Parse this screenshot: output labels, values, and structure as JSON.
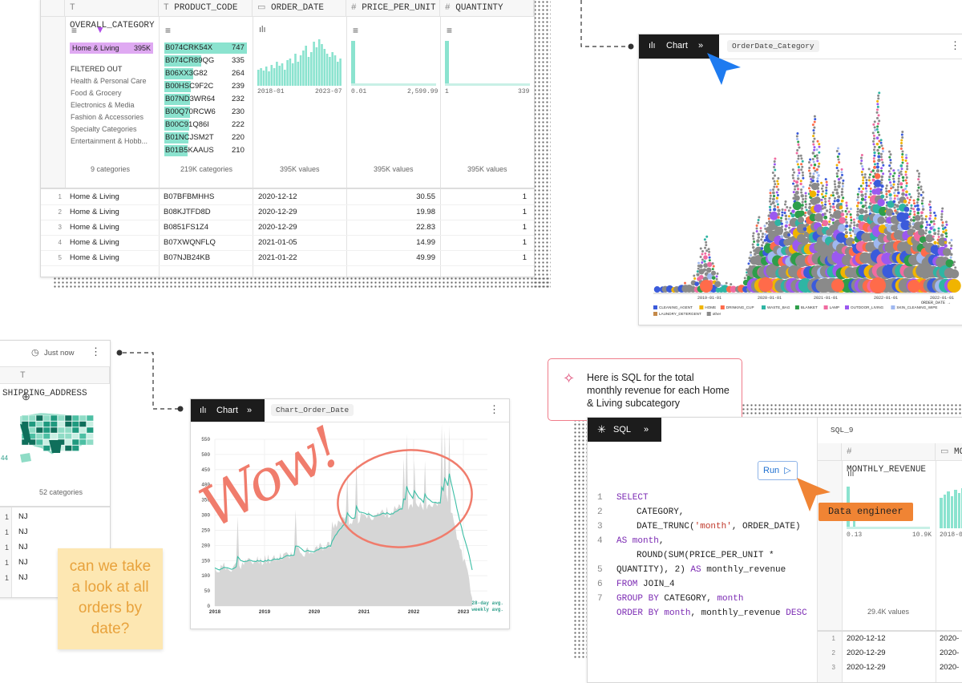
{
  "table": {
    "columns": [
      {
        "icon": "T",
        "name": "OVERALL_CATEGORY"
      },
      {
        "icon": "T",
        "name": "PRODUCT_CODE"
      },
      {
        "icon": "cal",
        "name": "ORDER_DATE"
      },
      {
        "icon": "#",
        "name": "PRICE_PER_UNIT"
      },
      {
        "icon": "#",
        "name": "QUANTINTY"
      }
    ],
    "category_selected": {
      "label": "Home & Living",
      "count": "395K"
    },
    "filtered_out_label": "FILTERED OUT",
    "filtered_out": [
      "Health & Personal Care",
      "Food & Grocery",
      "Electronics & Media",
      "Fashion & Accessories",
      "Specialty Categories",
      "Entertainment & Hobb..."
    ],
    "category_summary": "9 categories",
    "product_codes": [
      {
        "code": "B074CRK54X",
        "count": "747",
        "fill": 1.0
      },
      {
        "code": "B074CR89QG",
        "count": "335",
        "fill": 0.45
      },
      {
        "code": "B06XX3G82",
        "count": "264",
        "fill": 0.35
      },
      {
        "code": "B00HSC9F2C",
        "count": "239",
        "fill": 0.32
      },
      {
        "code": "B07ND3WR64",
        "count": "232",
        "fill": 0.31
      },
      {
        "code": "B00Q70RCW6",
        "count": "230",
        "fill": 0.31
      },
      {
        "code": "B00C91Q86I",
        "count": "222",
        "fill": 0.3
      },
      {
        "code": "B01NCJSM2T",
        "count": "220",
        "fill": 0.29
      },
      {
        "code": "B01B5KAAUS",
        "count": "210",
        "fill": 0.28
      }
    ],
    "product_summary": "219K categories",
    "order_date_range": [
      "2018-01",
      "2023-07"
    ],
    "order_date_summary": "395K values",
    "price_range": [
      "0.01",
      "2,599.99"
    ],
    "price_summary": "395K values",
    "qty_range": [
      "1",
      "339"
    ],
    "qty_summary": "395K values",
    "rows": [
      {
        "n": "1",
        "cat": "Home & Living",
        "code": "B07BFBMHHS",
        "date": "2020-12-12",
        "price": "30.55",
        "qty": "1"
      },
      {
        "n": "2",
        "cat": "Home & Living",
        "code": "B08KJTFD8D",
        "date": "2020-12-29",
        "price": "19.98",
        "qty": "1"
      },
      {
        "n": "3",
        "cat": "Home & Living",
        "code": "B0851FS1Z4",
        "date": "2020-12-29",
        "price": "22.83",
        "qty": "1"
      },
      {
        "n": "4",
        "cat": "Home & Living",
        "code": "B07XWQNFLQ",
        "date": "2021-01-05",
        "price": "14.99",
        "qty": "1"
      },
      {
        "n": "5",
        "cat": "Home & Living",
        "code": "B07NJB24KB",
        "date": "2021-01-22",
        "price": "49.99",
        "qty": "1"
      }
    ]
  },
  "chart1": {
    "tab": "Chart",
    "name": "OrderDate_Category",
    "x_ticks": [
      "2019-01-01",
      "2020-01-01",
      "2021-01-01",
      "2022-01-01",
      "2022-01-01"
    ],
    "x_label": "ORDER_DATE →",
    "legend": [
      {
        "name": "CLEANING_AGENT",
        "color": "#3b5bdb"
      },
      {
        "name": "HOME",
        "color": "#f0b400"
      },
      {
        "name": "DRINKING_CUP",
        "color": "#ff6b4a"
      },
      {
        "name": "WASTE_BAG",
        "color": "#2fb5a4"
      },
      {
        "name": "BLANKET",
        "color": "#2e9e4a"
      },
      {
        "name": "LAMP",
        "color": "#f06ba0"
      },
      {
        "name": "OUTDOOR_LIVING",
        "color": "#9b59f0"
      },
      {
        "name": "SKIN_CLEANING_WIPE",
        "color": "#9fb8f0"
      },
      {
        "name": "LAUNDRY_DETERGENT",
        "color": "#c58a4a"
      },
      {
        "name": "other",
        "color": "#8a8a8a"
      }
    ]
  },
  "left_panel": {
    "time": "Just now",
    "col": "SHIPPING_ADDRESS",
    "summary": "52 categories",
    "side_value": "44",
    "rows": [
      {
        "n": "1",
        "v": "NJ"
      },
      {
        "n": "1",
        "v": "NJ"
      },
      {
        "n": "1",
        "v": "NJ"
      },
      {
        "n": "1",
        "v": "NJ"
      },
      {
        "n": "1",
        "v": "NJ"
      }
    ]
  },
  "chart2": {
    "tab": "Chart",
    "name": "Chart_Order_Date",
    "y_ticks": [
      "550",
      "500",
      "450",
      "400",
      "350",
      "300",
      "250",
      "200",
      "150",
      "100",
      "50",
      "0"
    ],
    "x_ticks": [
      "2018",
      "2019",
      "2020",
      "2021",
      "2022",
      "2023"
    ],
    "legend": [
      "28-day avg.",
      "weekly avg."
    ],
    "annotation": "Wow!"
  },
  "sticky": "can we take a look at all orders by date?",
  "ai_bubble": "Here is SQL for the total monthly revenue for each Home & Living subcategory",
  "sql": {
    "tab": "SQL",
    "run": "Run",
    "cursor_label": "Data engineer",
    "result_name": "SQL_9",
    "col1": "MONTHLY_REVENUE",
    "col2": "MON",
    "range1": [
      "0.13",
      "10.9K"
    ],
    "range2": "2018-0",
    "summary": "29.4K values",
    "rows": [
      {
        "n": "1",
        "v": "2020-12-12"
      },
      {
        "n": "2",
        "v": "2020-12-29"
      },
      {
        "n": "3",
        "v": "2020-12-29"
      }
    ]
  },
  "colors": {
    "teal": "#8be3cf",
    "accent_blue": "#1e7bf0",
    "orange": "#f08434",
    "pink": "#f07c6c"
  }
}
